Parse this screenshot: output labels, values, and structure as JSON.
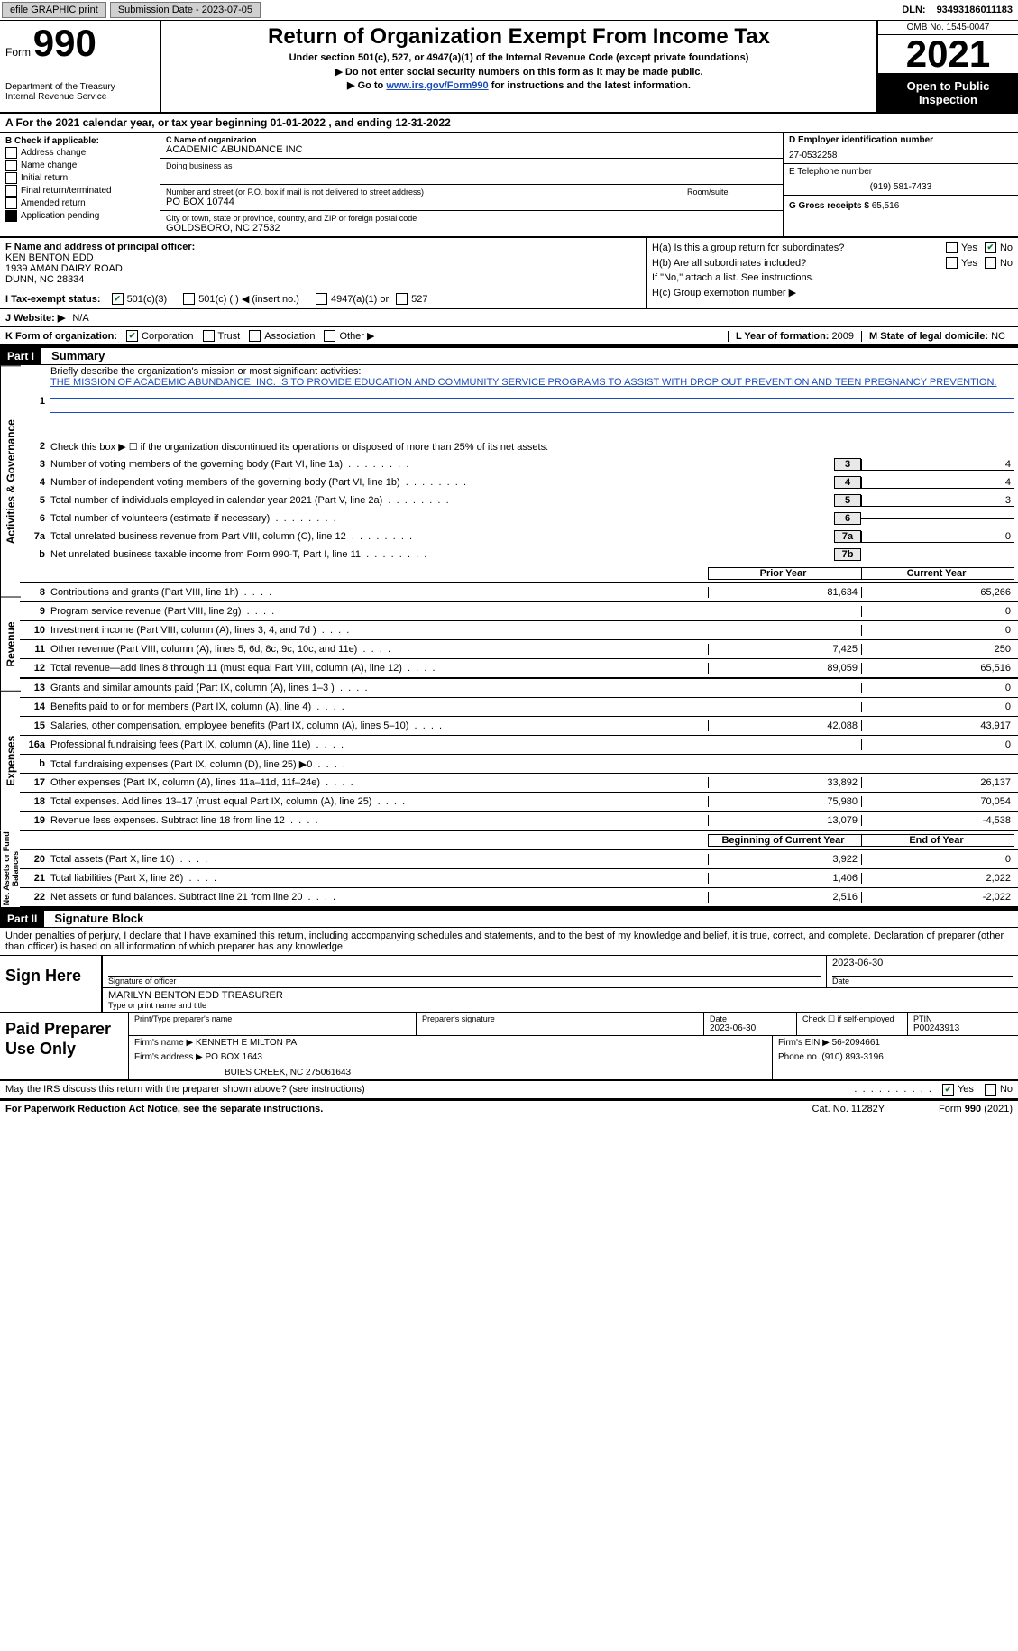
{
  "topbar": {
    "efile": "efile GRAPHIC print",
    "submission": "Submission Date - 2023-07-05",
    "dln_label": "DLN:",
    "dln": "93493186011183"
  },
  "header": {
    "form_word": "Form",
    "form_no": "990",
    "dept1": "Department of the Treasury",
    "dept2": "Internal Revenue Service",
    "title": "Return of Organization Exempt From Income Tax",
    "subtitle": "Under section 501(c), 527, or 4947(a)(1) of the Internal Revenue Code (except private foundations)",
    "line1": "▶ Do not enter social security numbers on this form as it may be made public.",
    "line2_pre": "▶ Go to ",
    "line2_link": "www.irs.gov/Form990",
    "line2_post": " for instructions and the latest information.",
    "omb": "OMB No. 1545-0047",
    "year": "2021",
    "open": "Open to Public Inspection"
  },
  "rowA": {
    "text_pre": "A For the 2021 calendar year, or tax year beginning ",
    "begin": "01-01-2022",
    "mid": " , and ending ",
    "end": "12-31-2022"
  },
  "colB": {
    "label": "B Check if applicable:",
    "items": [
      "Address change",
      "Name change",
      "Initial return",
      "Final return/terminated",
      "Amended return",
      "Application pending"
    ]
  },
  "colC": {
    "name_label": "C Name of organization",
    "name": "ACADEMIC ABUNDANCE INC",
    "dba_label": "Doing business as",
    "addr_label": "Number and street (or P.O. box if mail is not delivered to street address)",
    "room_label": "Room/suite",
    "addr": "PO BOX 10744",
    "city_label": "City or town, state or province, country, and ZIP or foreign postal code",
    "city": "GOLDSBORO, NC  27532"
  },
  "colD": {
    "ein_label": "D Employer identification number",
    "ein": "27-0532258",
    "phone_label": "E Telephone number",
    "phone": "(919) 581-7433",
    "gross_label": "G Gross receipts $",
    "gross": "65,516"
  },
  "rowF": {
    "label": "F Name and address of principal officer:",
    "name": "KEN BENTON EDD",
    "addr1": "1939 AMAN DAIRY ROAD",
    "addr2": "DUNN, NC  28334"
  },
  "rowH": {
    "a_label": "H(a)  Is this a group return for subordinates?",
    "b_label": "H(b)  Are all subordinates included?",
    "b_note": "If \"No,\" attach a list. See instructions.",
    "c_label": "H(c)  Group exemption number ▶",
    "yes": "Yes",
    "no": "No"
  },
  "rowI": {
    "label": "I  Tax-exempt status:",
    "opt1": "501(c)(3)",
    "opt2": "501(c) (   ) ◀ (insert no.)",
    "opt3": "4947(a)(1) or",
    "opt4": "527"
  },
  "rowJ": {
    "label": "J  Website: ▶",
    "value": "N/A"
  },
  "rowK": {
    "label": "K Form of organization:",
    "opts": [
      "Corporation",
      "Trust",
      "Association",
      "Other ▶"
    ],
    "L_label": "L Year of formation:",
    "L_val": "2009",
    "M_label": "M State of legal domicile:",
    "M_val": "NC"
  },
  "part1": {
    "header": "Part I",
    "title": "Summary",
    "line1_label": "Briefly describe the organization's mission or most significant activities:",
    "mission": "THE MISSION OF ACADEMIC ABUNDANCE, INC. IS TO PROVIDE EDUCATION AND COMMUNITY SERVICE PROGRAMS TO ASSIST WITH DROP OUT PREVENTION AND TEEN PREGNANCY PREVENTION.",
    "line2": "Check this box ▶ ☐ if the organization discontinued its operations or disposed of more than 25% of its net assets.",
    "lines_gov": [
      {
        "n": "3",
        "t": "Number of voting members of the governing body (Part VI, line 1a)",
        "bn": "3",
        "v": "4"
      },
      {
        "n": "4",
        "t": "Number of independent voting members of the governing body (Part VI, line 1b)",
        "bn": "4",
        "v": "4"
      },
      {
        "n": "5",
        "t": "Total number of individuals employed in calendar year 2021 (Part V, line 2a)",
        "bn": "5",
        "v": "3"
      },
      {
        "n": "6",
        "t": "Total number of volunteers (estimate if necessary)",
        "bn": "6",
        "v": ""
      },
      {
        "n": "7a",
        "t": "Total unrelated business revenue from Part VIII, column (C), line 12",
        "bn": "7a",
        "v": "0"
      },
      {
        "n": "b",
        "t": "Net unrelated business taxable income from Form 990-T, Part I, line 11",
        "bn": "7b",
        "v": ""
      }
    ],
    "col_prior": "Prior Year",
    "col_current": "Current Year",
    "revenue": [
      {
        "n": "8",
        "t": "Contributions and grants (Part VIII, line 1h)",
        "p": "81,634",
        "c": "65,266"
      },
      {
        "n": "9",
        "t": "Program service revenue (Part VIII, line 2g)",
        "p": "",
        "c": "0"
      },
      {
        "n": "10",
        "t": "Investment income (Part VIII, column (A), lines 3, 4, and 7d )",
        "p": "",
        "c": "0"
      },
      {
        "n": "11",
        "t": "Other revenue (Part VIII, column (A), lines 5, 6d, 8c, 9c, 10c, and 11e)",
        "p": "7,425",
        "c": "250"
      },
      {
        "n": "12",
        "t": "Total revenue—add lines 8 through 11 (must equal Part VIII, column (A), line 12)",
        "p": "89,059",
        "c": "65,516"
      }
    ],
    "expenses": [
      {
        "n": "13",
        "t": "Grants and similar amounts paid (Part IX, column (A), lines 1–3 )",
        "p": "",
        "c": "0"
      },
      {
        "n": "14",
        "t": "Benefits paid to or for members (Part IX, column (A), line 4)",
        "p": "",
        "c": "0"
      },
      {
        "n": "15",
        "t": "Salaries, other compensation, employee benefits (Part IX, column (A), lines 5–10)",
        "p": "42,088",
        "c": "43,917"
      },
      {
        "n": "16a",
        "t": "Professional fundraising fees (Part IX, column (A), line 11e)",
        "p": "",
        "c": "0"
      },
      {
        "n": "b",
        "t": "Total fundraising expenses (Part IX, column (D), line 25) ▶0",
        "p": "shaded",
        "c": "shaded"
      },
      {
        "n": "17",
        "t": "Other expenses (Part IX, column (A), lines 11a–11d, 11f–24e)",
        "p": "33,892",
        "c": "26,137"
      },
      {
        "n": "18",
        "t": "Total expenses. Add lines 13–17 (must equal Part IX, column (A), line 25)",
        "p": "75,980",
        "c": "70,054"
      },
      {
        "n": "19",
        "t": "Revenue less expenses. Subtract line 18 from line 12",
        "p": "13,079",
        "c": "-4,538"
      }
    ],
    "col_begin": "Beginning of Current Year",
    "col_end": "End of Year",
    "netassets": [
      {
        "n": "20",
        "t": "Total assets (Part X, line 16)",
        "p": "3,922",
        "c": "0"
      },
      {
        "n": "21",
        "t": "Total liabilities (Part X, line 26)",
        "p": "1,406",
        "c": "2,022"
      },
      {
        "n": "22",
        "t": "Net assets or fund balances. Subtract line 21 from line 20",
        "p": "2,516",
        "c": "-2,022"
      }
    ],
    "tab_gov": "Activities & Governance",
    "tab_rev": "Revenue",
    "tab_exp": "Expenses",
    "tab_net": "Net Assets or Fund Balances"
  },
  "part2": {
    "header": "Part II",
    "title": "Signature Block",
    "penalties": "Under penalties of perjury, I declare that I have examined this return, including accompanying schedules and statements, and to the best of my knowledge and belief, it is true, correct, and complete. Declaration of preparer (other than officer) is based on all information of which preparer has any knowledge.",
    "sign_here": "Sign Here",
    "sig_officer": "Signature of officer",
    "sig_date": "2023-06-30",
    "date_label": "Date",
    "officer_name": "MARILYN BENTON EDD  TREASURER",
    "type_name": "Type or print name and title",
    "paid_label": "Paid Preparer Use Only",
    "pp_name_label": "Print/Type preparer's name",
    "pp_sig_label": "Preparer's signature",
    "pp_date_label": "Date",
    "pp_date": "2023-06-30",
    "pp_check": "Check ☐ if self-employed",
    "ptin_label": "PTIN",
    "ptin": "P00243913",
    "firm_name_label": "Firm's name    ▶",
    "firm_name": "KENNETH E MILTON PA",
    "firm_ein_label": "Firm's EIN ▶",
    "firm_ein": "56-2094661",
    "firm_addr_label": "Firm's address ▶",
    "firm_addr1": "PO BOX 1643",
    "firm_addr2": "BUIES CREEK, NC  275061643",
    "firm_phone_label": "Phone no.",
    "firm_phone": "(910) 893-3196",
    "may_irs": "May the IRS discuss this return with the preparer shown above? (see instructions)",
    "yes": "Yes",
    "no": "No"
  },
  "footer": {
    "pra": "For Paperwork Reduction Act Notice, see the separate instructions.",
    "cat": "Cat. No. 11282Y",
    "form": "Form 990 (2021)"
  },
  "colors": {
    "link": "#1a4bbd",
    "check": "#0a7a2f"
  }
}
